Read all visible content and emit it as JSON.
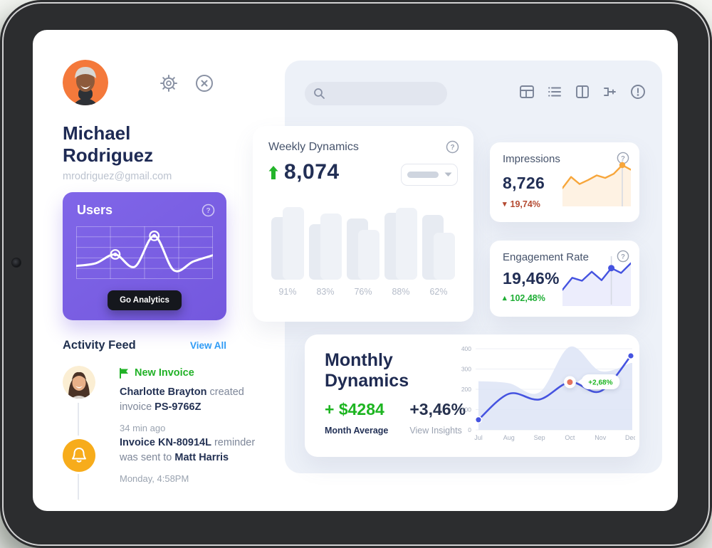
{
  "profile": {
    "first_name": "Michael",
    "last_name": "Rodriguez",
    "email": "mrodriguez@gmail.com"
  },
  "users_card": {
    "title": "Users",
    "button_label": "Go Analytics"
  },
  "activity_feed": {
    "title": "Activity Feed",
    "view_all_label": "View All",
    "items": [
      {
        "badge": "New Invoice",
        "b1": "Charlotte Brayton",
        "t1": " created",
        "t2": "invoice ",
        "b2": "PS-9766Z",
        "time": "34 min ago"
      },
      {
        "b1": "Invoice KN-80914L",
        "t1": " reminder",
        "t2": "was sent to ",
        "b2": "Matt Harris",
        "time": "Monday, 4:58PM"
      }
    ]
  },
  "search": {
    "placeholder": ""
  },
  "toolbar": {
    "icons": [
      "grid-layout",
      "list",
      "columns",
      "merge-flow",
      "alert-circle"
    ]
  },
  "weekly_card": {
    "title": "Weekly Dynamics",
    "value": "8,074",
    "bar_labels": [
      "91%",
      "83%",
      "76%",
      "88%",
      "62%"
    ]
  },
  "impressions_card": {
    "title": "Impressions",
    "value": "8,726",
    "delta": "19,74%",
    "delta_direction": "down"
  },
  "engagement_card": {
    "title": "Engagement Rate",
    "value": "19,46%",
    "delta": "102,48%",
    "delta_direction": "up"
  },
  "monthly_card": {
    "title_line1": "Monthly",
    "title_line2": "Dynamics",
    "average_value": "+ $4284",
    "average_label": "Month Average",
    "change_value": "+3,46%",
    "change_label": "View Insights",
    "tooltip": "+2,68%"
  },
  "colors": {
    "accent_purple": "#7a61e2",
    "navy_text": "#222f55",
    "green": "#1db521",
    "red_delta": "#b44a31",
    "blue_line": "#4553e0",
    "orange_line": "#f7a63b",
    "salmon_marker": "#e4745e",
    "panel_bg": "#edf1f8",
    "link_blue": "#2f9bf5",
    "bell_orange": "#f7ac1b"
  },
  "chart_data": [
    {
      "id": "users-spark",
      "type": "line",
      "values": [
        20,
        26,
        46,
        18,
        88,
        10,
        30,
        44
      ],
      "markers": [
        2,
        4
      ],
      "line_color": "#ffffff",
      "title": "Users"
    },
    {
      "id": "weekly-bars",
      "type": "bar",
      "categories": [
        "91%",
        "83%",
        "76%",
        "88%",
        "62%"
      ],
      "series": [
        {
          "name": "left",
          "values": [
            88,
            78,
            86,
            94,
            91
          ]
        },
        {
          "name": "right",
          "values": [
            102,
            93,
            70,
            101,
            66
          ]
        }
      ],
      "title": "Weekly Dynamics",
      "unit": "relative-height-px"
    },
    {
      "id": "impressions-spark",
      "type": "line",
      "values": [
        30,
        52,
        38,
        46,
        55,
        50,
        58,
        75,
        66
      ],
      "marker_index": 7,
      "line_color": "#f7a63b",
      "title": "Impressions"
    },
    {
      "id": "engagement-spark",
      "type": "line",
      "values": [
        22,
        42,
        37,
        52,
        38,
        58,
        50,
        66
      ],
      "marker_index": 5,
      "line_color": "#4553e0",
      "title": "Engagement Rate"
    },
    {
      "id": "monthly-dynamics",
      "type": "area-line",
      "x": [
        "Jul",
        "Aug",
        "Sep",
        "Oct",
        "Nov",
        "Dec"
      ],
      "line_values": [
        50,
        178,
        150,
        235,
        190,
        365
      ],
      "area_values": [
        240,
        230,
        185,
        410,
        290,
        330
      ],
      "ylim": [
        0,
        400
      ],
      "yticks": [
        0,
        100,
        200,
        300,
        400
      ],
      "highlight": {
        "x": "Oct",
        "label": "+2,68%",
        "marker_color": "#e4745e"
      },
      "end_markers": [
        "Jul",
        "Dec"
      ],
      "line_color": "#4553e0",
      "area_color": "#dde4f6",
      "title": "Monthly Dynamics",
      "grid": true,
      "legend": false
    }
  ]
}
